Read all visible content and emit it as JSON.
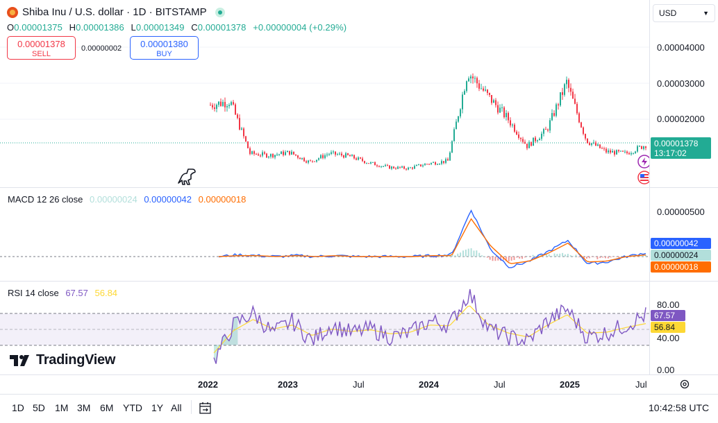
{
  "header": {
    "symbol_title": "Shiba Inu / U.S. dollar · 1D · BITSTAMP",
    "ohlc": [
      {
        "label": "O",
        "value": "0.00001375"
      },
      {
        "label": "H",
        "value": "0.00001386"
      },
      {
        "label": "L",
        "value": "0.00001349"
      },
      {
        "label": "C",
        "value": "0.00001378"
      }
    ],
    "change": "+0.00000004 (+0.29%)",
    "sell_price": "0.00001378",
    "sell_label": "SELL",
    "spread": "0.00000002",
    "buy_price": "0.00001380",
    "buy_label": "BUY",
    "currency": "USD"
  },
  "price_axis": {
    "ticks": [
      "0.00004000",
      "0.00003000",
      "0.00002000"
    ],
    "last_price": "0.00001378",
    "countdown": "13:17:02"
  },
  "macd": {
    "title": "MACD 12 26 close",
    "histogram_value": "0.00000024",
    "macd_value": "0.00000042",
    "signal_value": "0.00000018",
    "axis_tick": "0.00000500"
  },
  "rsi": {
    "title": "RSI 14 close",
    "rsi_value": "67.57",
    "ma_value": "56.84",
    "axis_ticks": [
      "80.00",
      "40.00",
      "0.00"
    ]
  },
  "time_axis": [
    "2022",
    "2023",
    "Jul",
    "2024",
    "Jul",
    "2025",
    "Jul"
  ],
  "footer": {
    "ranges": [
      "1D",
      "5D",
      "1M",
      "3M",
      "6M",
      "YTD",
      "1Y",
      "All"
    ],
    "clock": "10:42:58 UTC"
  },
  "branding": {
    "logo_text": "TradingView"
  },
  "colors": {
    "up": "#22ab94",
    "down": "#f23645",
    "macd_line": "#2962ff",
    "signal_line": "#ff6d00",
    "histogram": "#b2dfdb",
    "rsi_line": "#7e57c2",
    "rsi_ma": "#fdd835"
  },
  "chart_data": [
    {
      "type": "candlestick",
      "title": "Shiba Inu / U.S. dollar · 1D · BITSTAMP",
      "x": [
        "2022-01",
        "2022-03",
        "2022-05",
        "2022-07",
        "2022-09",
        "2022-11",
        "2023-01",
        "2023-03",
        "2023-05",
        "2023-07",
        "2023-09",
        "2023-11",
        "2024-01",
        "2024-03",
        "2024-04",
        "2024-06",
        "2024-08",
        "2024-10",
        "2024-12",
        "2025-02",
        "2025-04",
        "2025-06",
        "2025-07"
      ],
      "close": [
        2.45e-05,
        2.55e-05,
        1.15e-05,
        1.1e-05,
        1.18e-05,
        9.2e-06,
        1.15e-05,
        1.08e-05,
        9e-06,
        7.8e-06,
        7.5e-06,
        8.8e-06,
        9.5e-06,
        3.35e-05,
        2.7e-05,
        2.1e-05,
        1.35e-05,
        1.78e-05,
        3.05e-05,
        1.5e-05,
        1.2e-05,
        1.15e-05,
        1.38e-05
      ],
      "ylim": [
        3e-06,
        4.6e-05
      ]
    },
    {
      "type": "line",
      "title": "MACD 12 26 close",
      "series": [
        {
          "name": "MACD",
          "values": [
            0.0,
            2e-07,
            1e-07,
            0.0,
            1e-07,
            0.0,
            1e-07,
            0.0,
            0.0,
            0.0,
            0.0,
            1e-07,
            2e-07,
            5.2e-06,
            8e-07,
            -1.2e-06,
            -5e-07,
            6e-07,
            1.8e-06,
            -8e-07,
            -6e-07,
            0.0,
            4.2e-07
          ]
        },
        {
          "name": "Signal",
          "values": [
            0.0,
            1e-07,
            1e-07,
            0.0,
            1e-07,
            0.0,
            1e-07,
            0.0,
            0.0,
            0.0,
            0.0,
            1e-07,
            1e-07,
            4.2e-06,
            1.2e-06,
            -8e-07,
            -5e-07,
            4e-07,
            1.5e-06,
            -6e-07,
            -5e-07,
            0.0,
            1.8e-07
          ]
        }
      ]
    },
    {
      "type": "line",
      "title": "RSI 14 close",
      "series": [
        {
          "name": "RSI",
          "values": [
            10,
            55,
            70,
            45,
            60,
            35,
            55,
            45,
            50,
            40,
            45,
            60,
            55,
            95,
            50,
            40,
            35,
            60,
            75,
            40,
            45,
            55,
            67.57
          ]
        },
        {
          "name": "MA",
          "values": [
            20,
            48,
            62,
            50,
            55,
            42,
            50,
            47,
            49,
            44,
            46,
            55,
            54,
            80,
            55,
            45,
            40,
            55,
            68,
            45,
            46,
            52,
            56.84
          ]
        }
      ],
      "ylim": [
        0,
        100
      ]
    }
  ]
}
